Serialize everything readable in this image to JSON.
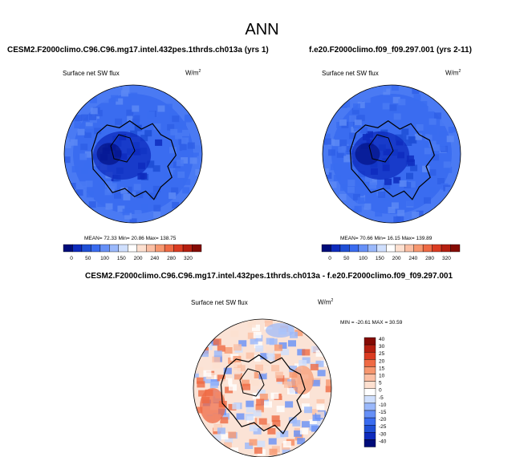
{
  "page_title": "ANN",
  "panels": [
    {
      "case_name": "CESM2.F2000climo.C96.C96.mg17.intel.432pes.1thrds.ch013a (yrs 1)",
      "variable": "Surface net SW flux",
      "units": "W/m",
      "units_exp": "2",
      "stats_text": "MEAN=  72.33  Min=  20.86  Max= 138.75"
    },
    {
      "case_name": "f.e20.F2000climo.f09_f09.297.001 (yrs 2-11)",
      "variable": "Surface net SW flux",
      "units": "W/m",
      "units_exp": "2",
      "stats_text": "MEAN=  70.66  Min=  16.15  Max= 139.89"
    },
    {
      "case_name": "CESM2.F2000climo.C96.C96.mg17.intel.432pes.1thrds.ch013a - f.e20.F2000climo.f09_f09.297.001",
      "variable": "Surface net SW flux",
      "units": "W/m",
      "units_exp": "2",
      "stats_text": "MIN = -20.61 MAX =  30.59"
    }
  ],
  "chart_data": [
    {
      "type": "heatmap",
      "title": "Surface net SW flux",
      "subtitle": "CESM2.F2000climo.C96.C96.mg17.intel.432pes.1thrds.ch013a (yrs 1)",
      "projection": "north polar stereographic",
      "units": "W/m2",
      "mean": 72.33,
      "min": 20.86,
      "max": 138.75,
      "colorbar_ticks": [
        "0",
        "50",
        "100",
        "150",
        "200",
        "240",
        "280",
        "320"
      ],
      "colorbar_colors": [
        "#000c7a",
        "#0e2bbd",
        "#1f4fd6",
        "#3a6cf0",
        "#6690f7",
        "#9ab8fb",
        "#cfdffd",
        "#ffffff",
        "#fde0d0",
        "#fbbfa4",
        "#f7976f",
        "#ef6a44",
        "#db3c22",
        "#b51f10",
        "#850b04"
      ]
    },
    {
      "type": "heatmap",
      "title": "Surface net SW flux",
      "subtitle": "f.e20.F2000climo.f09_f09.297.001 (yrs 2-11)",
      "projection": "north polar stereographic",
      "units": "W/m2",
      "mean": 70.66,
      "min": 16.15,
      "max": 139.89,
      "colorbar_ticks": [
        "0",
        "50",
        "100",
        "150",
        "200",
        "240",
        "280",
        "320"
      ],
      "colorbar_colors": [
        "#000c7a",
        "#0e2bbd",
        "#1f4fd6",
        "#3a6cf0",
        "#6690f7",
        "#9ab8fb",
        "#cfdffd",
        "#ffffff",
        "#fde0d0",
        "#fbbfa4",
        "#f7976f",
        "#ef6a44",
        "#db3c22",
        "#b51f10",
        "#850b04"
      ]
    },
    {
      "type": "heatmap",
      "title": "Surface net SW flux",
      "subtitle": "difference",
      "projection": "north polar stereographic",
      "units": "W/m2",
      "min": -20.61,
      "max": 30.59,
      "colorbar_ticks": [
        "40",
        "30",
        "25",
        "20",
        "15",
        "10",
        "5",
        "0",
        "-5",
        "-10",
        "-15",
        "-20",
        "-25",
        "-30",
        "-40"
      ],
      "colorbar_colors": [
        "#850b04",
        "#b51f10",
        "#db3c22",
        "#ef6a44",
        "#f7976f",
        "#fbbfa4",
        "#fde0d0",
        "#ffffff",
        "#cfdffd",
        "#9ab8fb",
        "#6690f7",
        "#3a6cf0",
        "#1f4fd6",
        "#0e2bbd",
        "#000c7a"
      ]
    }
  ]
}
